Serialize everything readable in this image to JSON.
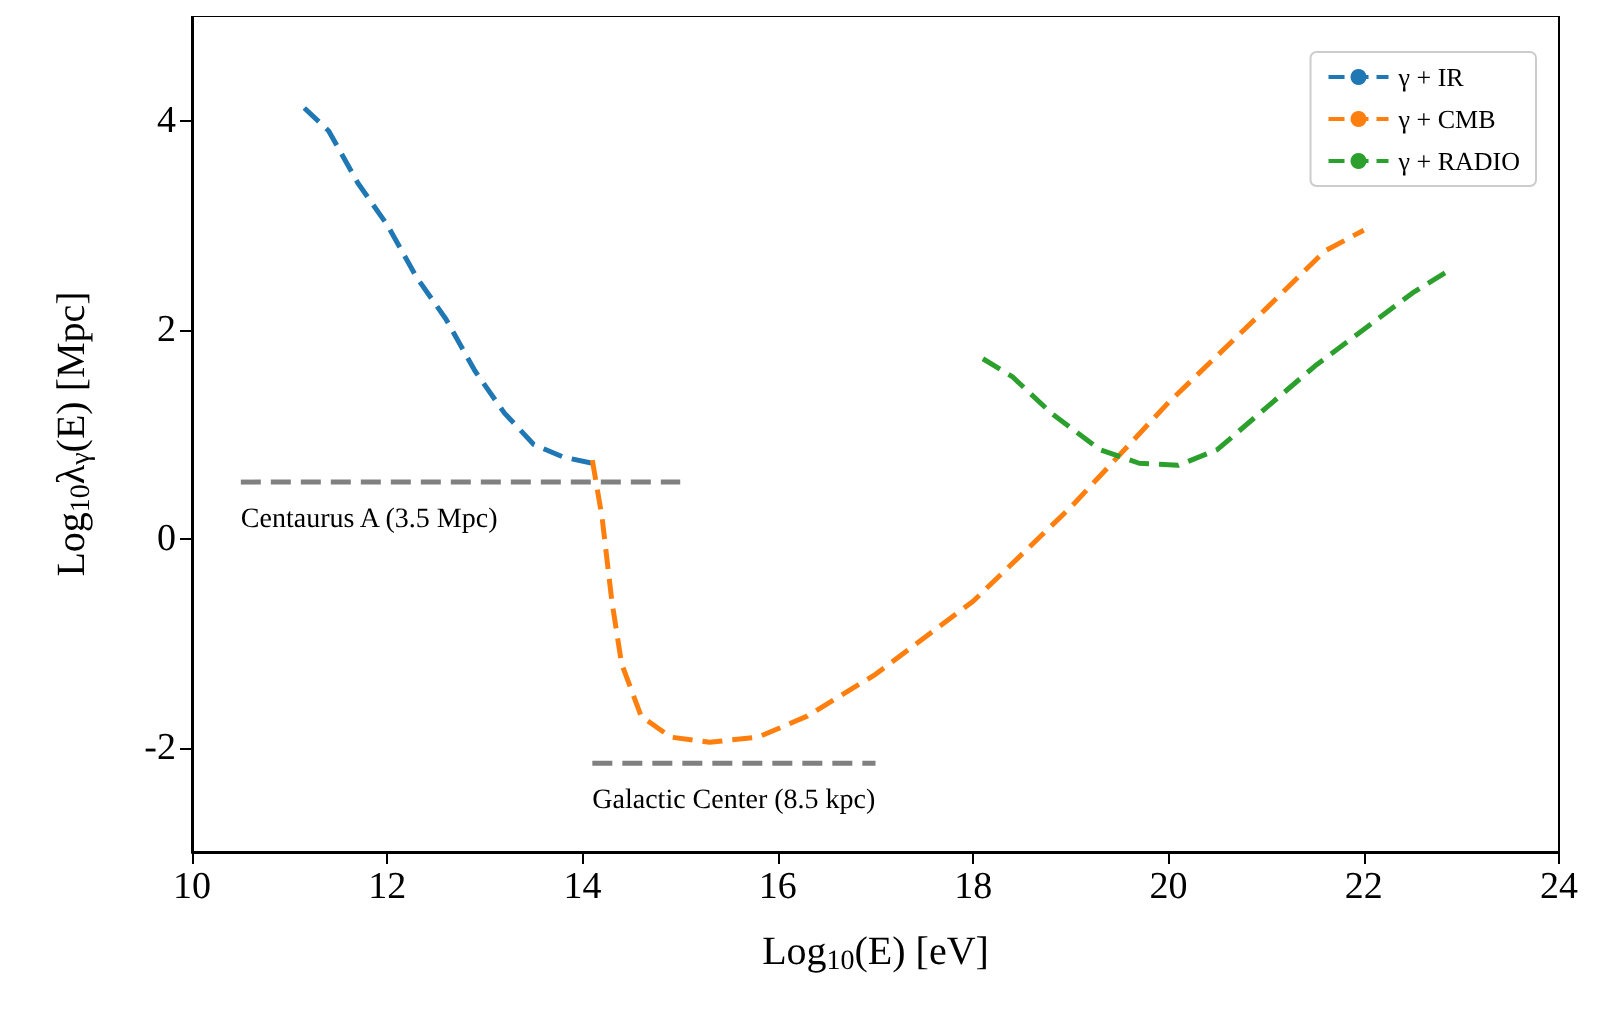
{
  "chart_data": {
    "type": "line",
    "xlabel": "Log$_{10}$(E) [eV]",
    "ylabel": "Log$_{10}$λ$_{γ}$(E) [Mpc]",
    "xlim": [
      10,
      24
    ],
    "xticks": [
      10,
      12,
      14,
      16,
      18,
      20,
      22,
      24
    ],
    "ylim": [
      -3,
      5
    ],
    "yticks": [
      -2,
      0,
      2,
      4
    ],
    "grid": false,
    "legend": "top right",
    "line_style": "dashed",
    "marker": "none",
    "series": [
      {
        "name": "γ + IR",
        "color": "#1f77b4",
        "x": [
          11.15,
          11.4,
          11.7,
          12,
          12.3,
          12.6,
          12.9,
          13.2,
          13.5,
          13.8,
          14.1
        ],
        "values": [
          4.12,
          3.9,
          3.4,
          3.0,
          2.5,
          2.1,
          1.6,
          1.2,
          0.9,
          0.78,
          0.72
        ]
      },
      {
        "name": "γ + CMB",
        "color": "#ff7f0e",
        "x": [
          14.1,
          14.2,
          14.3,
          14.4,
          14.6,
          14.9,
          15.3,
          15.8,
          16.3,
          17,
          18,
          19,
          20,
          21,
          21.6,
          22
        ],
        "values": [
          0.75,
          0.2,
          -0.6,
          -1.2,
          -1.7,
          -1.9,
          -1.95,
          -1.9,
          -1.7,
          -1.3,
          -0.6,
          0.3,
          1.3,
          2.2,
          2.75,
          2.95
        ]
      },
      {
        "name": "γ + RADIO",
        "color": "#2ca02c",
        "x": [
          18.1,
          18.4,
          18.8,
          19.3,
          19.7,
          20.1,
          20.5,
          21,
          21.5,
          22,
          22.5,
          22.9
        ],
        "values": [
          1.72,
          1.55,
          1.2,
          0.85,
          0.72,
          0.7,
          0.85,
          1.25,
          1.65,
          2.0,
          2.35,
          2.58
        ]
      },
      {
        "color": "#808080",
        "x": [
          10.5,
          15
        ],
        "values": [
          0.54,
          0.54
        ]
      },
      {
        "color": "#808080",
        "x": [
          14.1,
          17
        ],
        "values": [
          -2.15,
          -2.15
        ]
      }
    ],
    "annotations": [
      {
        "text": "Centaurus A (3.5 Mpc)",
        "x": 10.5,
        "y": 0.54
      },
      {
        "text": "Galactic Center (8.5 kpc)",
        "x": 14.1,
        "y": -2.15
      }
    ]
  }
}
